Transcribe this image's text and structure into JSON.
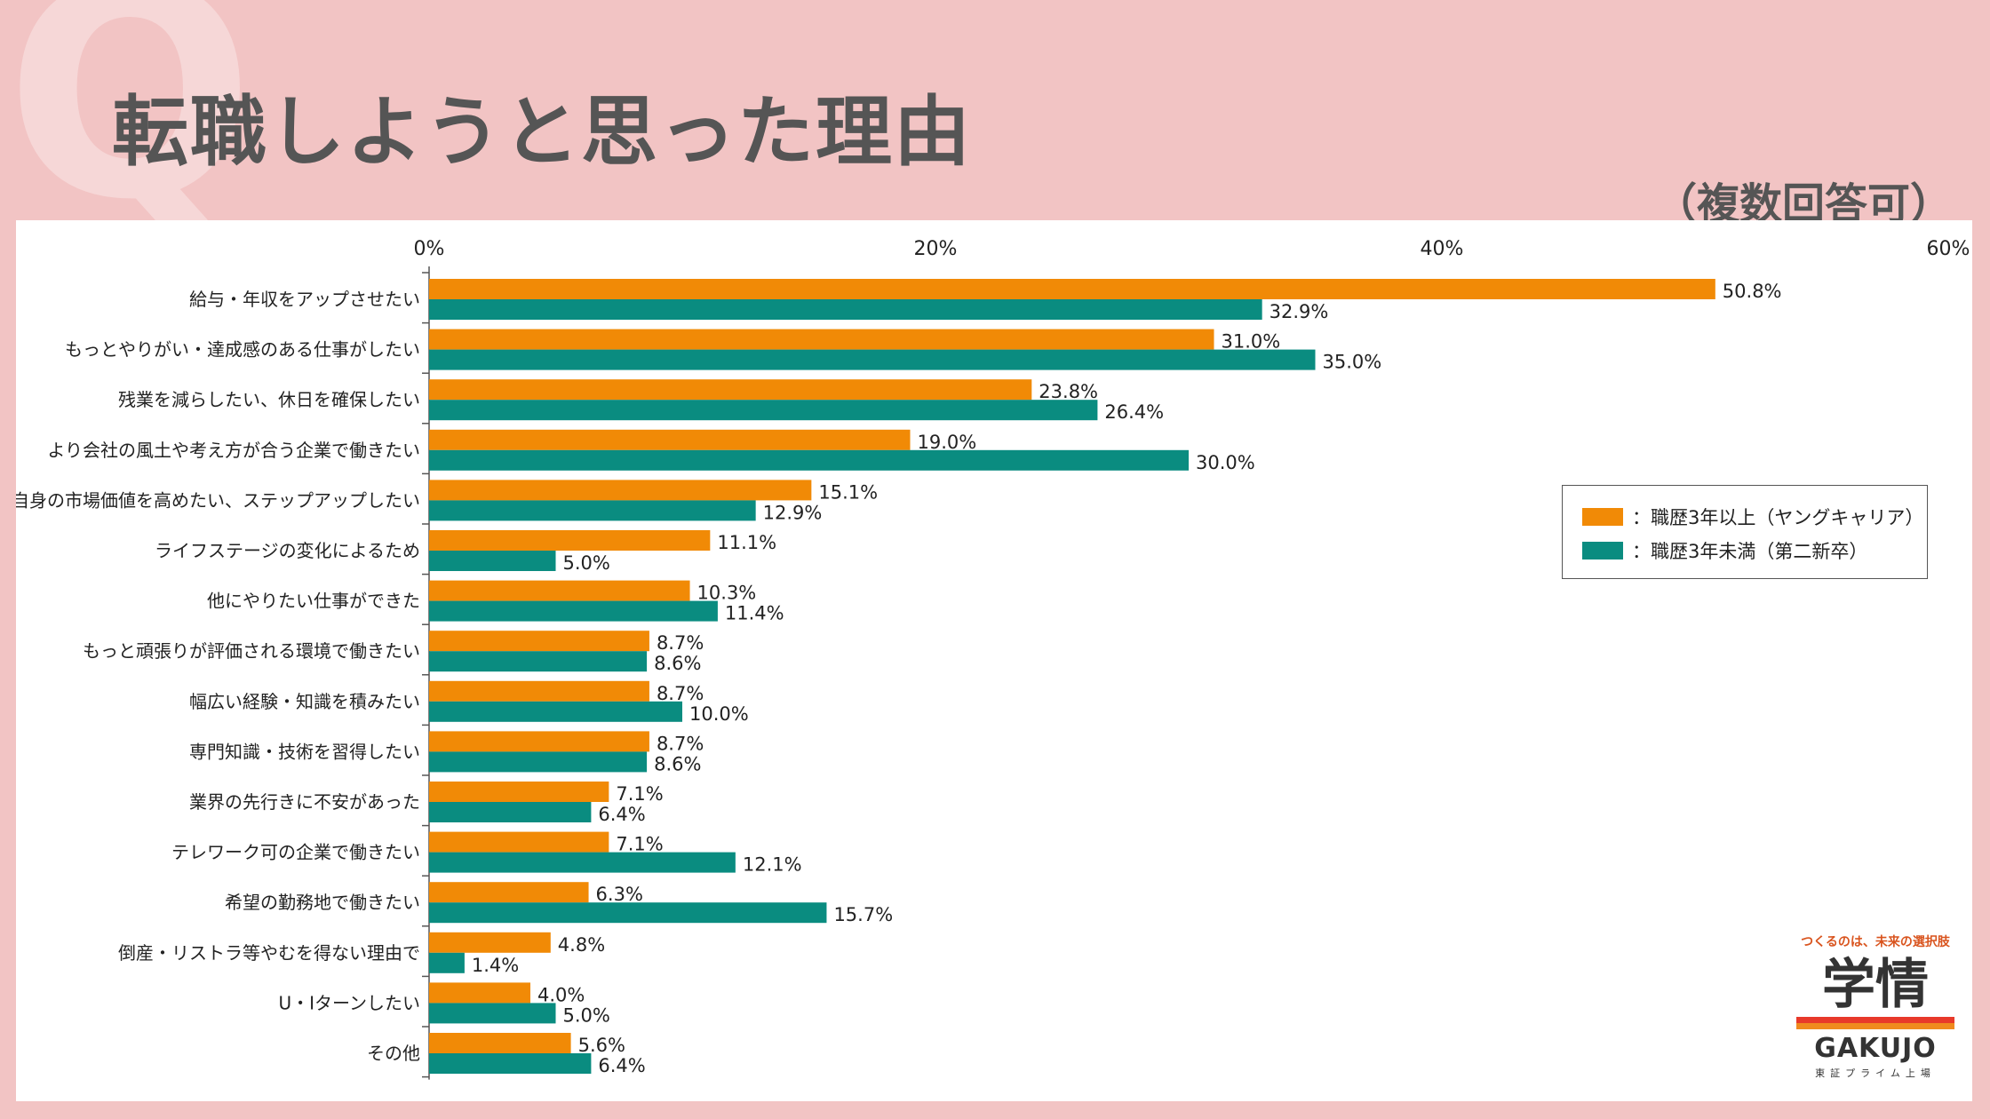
{
  "header": {
    "title": "転職しようと思った理由",
    "note": "（複数回答可）"
  },
  "legend": {
    "series_a": "：職歴3年以上（ヤングキャリア）",
    "series_b": "：職歴3年未満（第二新卒）"
  },
  "brand": {
    "tagline": "つくるのは、未来の選択肢",
    "logo": "学情",
    "name": "GAKUJO",
    "sub": "東証プライム上場"
  },
  "chart_data": {
    "type": "bar",
    "orientation": "horizontal",
    "title": "転職しようと思った理由",
    "xlim": [
      0,
      60
    ],
    "xticks": [
      0,
      20,
      40,
      60
    ],
    "xtick_labels": [
      "0%",
      "20%",
      "40%",
      "60%"
    ],
    "categories": [
      "給与・年収をアップさせたい",
      "もっとやりがい・達成感のある仕事がしたい",
      "残業を減らしたい、休日を確保したい",
      "より会社の風土や考え方が合う企業で働きたい",
      "自身の市場価値を高めたい、ステップアップしたい",
      "ライフステージの変化によるため",
      "他にやりたい仕事ができた",
      "もっと頑張りが評価される環境で働きたい",
      "幅広い経験・知識を積みたい",
      "専門知識・技術を習得したい",
      "業界の先行きに不安があった",
      "テレワーク可の企業で働きたい",
      "希望の勤務地で働きたい",
      "倒産・リストラ等やむを得ない理由で",
      "U・Iターンしたい",
      "その他"
    ],
    "series": [
      {
        "name": "職歴3年以上（ヤングキャリア）",
        "color": "#f18a06",
        "values": [
          50.8,
          31.0,
          23.8,
          19.0,
          15.1,
          11.1,
          10.3,
          8.7,
          8.7,
          8.7,
          7.1,
          7.1,
          6.3,
          4.8,
          4.0,
          5.6
        ],
        "labels": [
          "50.8%",
          "31.0%",
          "23.8%",
          "19.0%",
          "15.1%",
          "11.1%",
          "10.3%",
          "8.7%",
          "8.7%",
          "8.7%",
          "7.1%",
          "7.1%",
          "6.3%",
          "4.8%",
          "4.0%",
          "5.6%"
        ]
      },
      {
        "name": "職歴3年未満（第二新卒）",
        "color": "#0a8c80",
        "values": [
          32.9,
          35.0,
          26.4,
          30.0,
          12.9,
          5.0,
          11.4,
          8.6,
          10.0,
          8.6,
          6.4,
          12.1,
          15.7,
          1.4,
          5.0,
          6.4
        ],
        "labels": [
          "32.9%",
          "35.0%",
          "26.4%",
          "30.0%",
          "12.9%",
          "5.0%",
          "11.4%",
          "8.6%",
          "10.0%",
          "8.6%",
          "6.4%",
          "12.1%",
          "15.7%",
          "1.4%",
          "5.0%",
          "6.4%"
        ]
      }
    ]
  }
}
